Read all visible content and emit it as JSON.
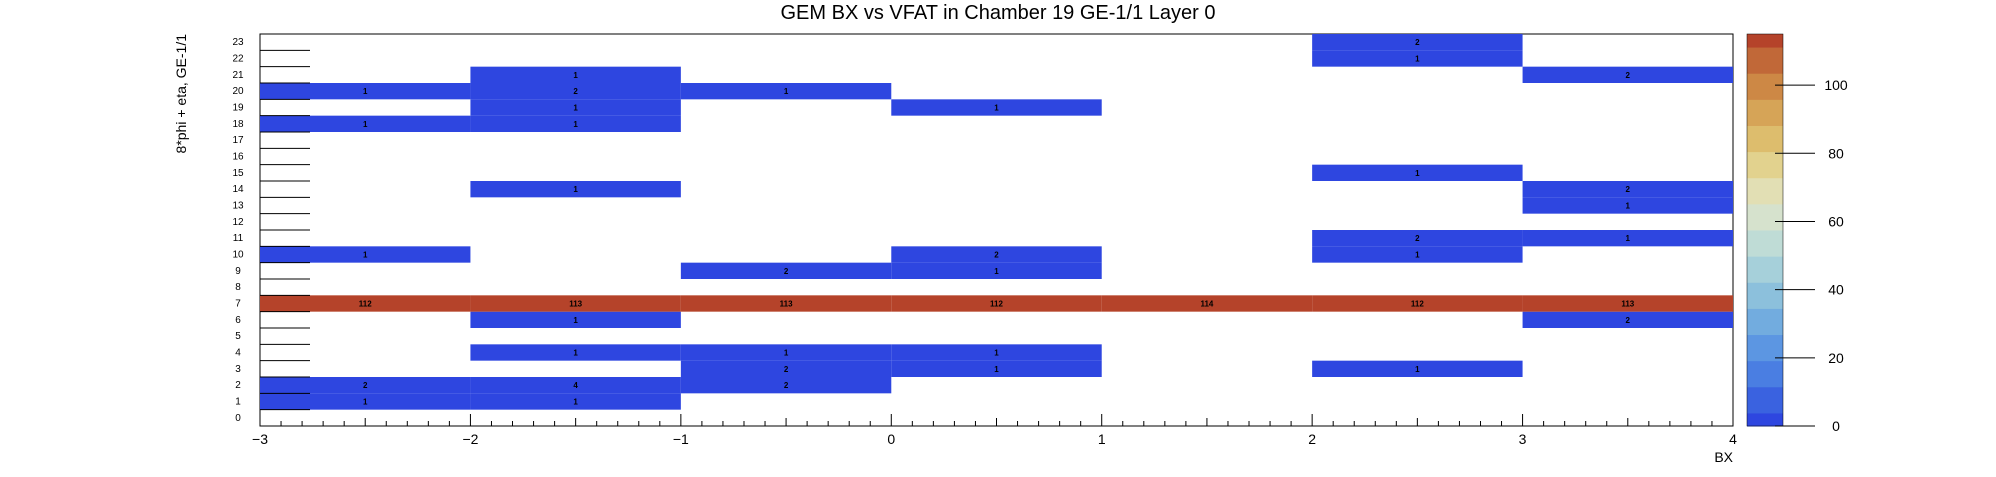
{
  "chart_data": {
    "type": "heatmap",
    "title": "GEM BX vs VFAT in Chamber 19 GE-1/1 Layer 0",
    "xlabel": "BX",
    "ylabel": "8*phi + eta, GE-1/1",
    "xlim": [
      -3,
      4
    ],
    "ylim": [
      0,
      24
    ],
    "x_bin_edges": [
      -3,
      -2,
      -1,
      0,
      1,
      2,
      3,
      4
    ],
    "x_ticks": [
      "−3",
      "−2",
      "−1",
      "0",
      "1",
      "2",
      "3",
      "4"
    ],
    "y_ticks": [
      "0",
      "1",
      "2",
      "3",
      "4",
      "5",
      "6",
      "7",
      "8",
      "9",
      "10",
      "11",
      "12",
      "13",
      "14",
      "15",
      "16",
      "17",
      "18",
      "19",
      "20",
      "21",
      "22",
      "23"
    ],
    "colorbar": {
      "min": 0,
      "max": 115,
      "ticks": [
        "0",
        "20",
        "40",
        "60",
        "80",
        "100"
      ]
    },
    "cells": [
      {
        "x": -2.5,
        "y": 1,
        "value": 1
      },
      {
        "x": -1.5,
        "y": 1,
        "value": 1
      },
      {
        "x": -2.5,
        "y": 2,
        "value": 2
      },
      {
        "x": -1.5,
        "y": 2,
        "value": 4
      },
      {
        "x": -0.5,
        "y": 2,
        "value": 2
      },
      {
        "x": -0.5,
        "y": 3,
        "value": 2
      },
      {
        "x": 0.5,
        "y": 3,
        "value": 1
      },
      {
        "x": 2.5,
        "y": 3,
        "value": 1
      },
      {
        "x": -1.5,
        "y": 4,
        "value": 1
      },
      {
        "x": -0.5,
        "y": 4,
        "value": 1
      },
      {
        "x": 0.5,
        "y": 4,
        "value": 1
      },
      {
        "x": -1.5,
        "y": 6,
        "value": 1
      },
      {
        "x": 3.5,
        "y": 6,
        "value": 2
      },
      {
        "x": -2.5,
        "y": 7,
        "value": 112
      },
      {
        "x": -1.5,
        "y": 7,
        "value": 113
      },
      {
        "x": -0.5,
        "y": 7,
        "value": 113
      },
      {
        "x": 0.5,
        "y": 7,
        "value": 112
      },
      {
        "x": 1.5,
        "y": 7,
        "value": 114
      },
      {
        "x": 2.5,
        "y": 7,
        "value": 112
      },
      {
        "x": 3.5,
        "y": 7,
        "value": 113
      },
      {
        "x": -0.5,
        "y": 9,
        "value": 2
      },
      {
        "x": 0.5,
        "y": 9,
        "value": 1
      },
      {
        "x": -2.5,
        "y": 10,
        "value": 1
      },
      {
        "x": 0.5,
        "y": 10,
        "value": 2
      },
      {
        "x": 2.5,
        "y": 10,
        "value": 1
      },
      {
        "x": 2.5,
        "y": 11,
        "value": 2
      },
      {
        "x": 3.5,
        "y": 11,
        "value": 1
      },
      {
        "x": 3.5,
        "y": 13,
        "value": 1
      },
      {
        "x": -1.5,
        "y": 14,
        "value": 1
      },
      {
        "x": 3.5,
        "y": 14,
        "value": 2
      },
      {
        "x": 2.5,
        "y": 15,
        "value": 1
      },
      {
        "x": -2.5,
        "y": 18,
        "value": 1
      },
      {
        "x": -1.5,
        "y": 18,
        "value": 1
      },
      {
        "x": -1.5,
        "y": 19,
        "value": 1
      },
      {
        "x": 0.5,
        "y": 19,
        "value": 1
      },
      {
        "x": -2.5,
        "y": 20,
        "value": 1
      },
      {
        "x": -1.5,
        "y": 20,
        "value": 2
      },
      {
        "x": -0.5,
        "y": 20,
        "value": 1
      },
      {
        "x": -1.5,
        "y": 21,
        "value": 1
      },
      {
        "x": 3.5,
        "y": 21,
        "value": 2
      },
      {
        "x": 2.5,
        "y": 22,
        "value": 1
      },
      {
        "x": 2.5,
        "y": 23,
        "value": 2
      }
    ],
    "colors": {
      "low": "#2e46e0",
      "high": "#b5432a"
    }
  }
}
